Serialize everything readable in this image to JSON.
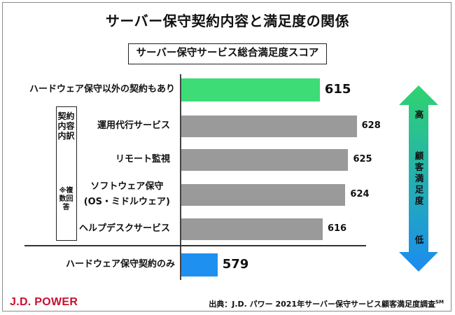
{
  "title": "サーバー保守契約内容と満足度の関係",
  "subtitle": "サーバー保守サービス総合満足度スコア",
  "group_label": "契約内容内訳",
  "group_note": "※複数回答",
  "scale": {
    "high": "高",
    "middle": "顧客満足度",
    "low": "低"
  },
  "brand": "J.D. POWER",
  "source": {
    "text": "出典：J.D. パワー 2021年サーバー保守サービス顧客満足度調査",
    "mark": "SM"
  },
  "colors": {
    "green": "#3ddc76",
    "gray": "#9a9a9a",
    "blue": "#1e90ef",
    "arrow_top": "#2fd36f",
    "arrow_bottom": "#1b8cf0",
    "brand": "#c8102e"
  },
  "chart_data": {
    "type": "bar",
    "orientation": "horizontal",
    "title": "サーバー保守サービス総合満足度スコア",
    "categories": [
      "ハードウェア保守以外の契約もあり",
      "運用代行サービス",
      "リモート監視",
      "ソフトウェア保守\n(OS・ミドルウェア)",
      "ヘルプデスクサービス",
      "ハードウェア保守契約のみ"
    ],
    "values": [
      615,
      628,
      625,
      624,
      616,
      579
    ],
    "value_labels": [
      "615",
      "628",
      "625",
      "624",
      "616",
      "579"
    ],
    "bar_colors": [
      "green",
      "gray",
      "gray",
      "gray",
      "gray",
      "blue"
    ],
    "emphasis": [
      true,
      false,
      false,
      false,
      false,
      true
    ],
    "xlim": [
      566,
      634
    ],
    "grid": false,
    "legend": "none"
  }
}
